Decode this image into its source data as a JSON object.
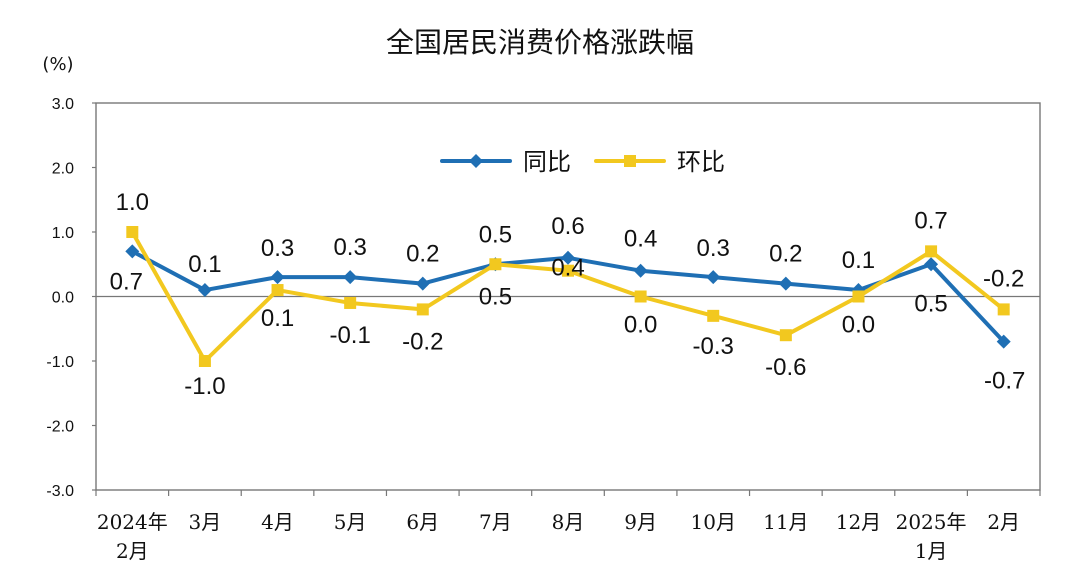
{
  "chart_data": {
    "type": "line",
    "title": "全国居民消费价格涨跌幅",
    "ylabel": "(%)",
    "xlabel": "",
    "ylim": [
      -3.0,
      3.0
    ],
    "yticks": [
      "3.0",
      "2.0",
      "1.0",
      "0.0",
      "-1.0",
      "-2.0",
      "-3.0"
    ],
    "categories": [
      [
        "2024年",
        "2月"
      ],
      [
        "3月"
      ],
      [
        "4月"
      ],
      [
        "5月"
      ],
      [
        "6月"
      ],
      [
        "7月"
      ],
      [
        "8月"
      ],
      [
        "9月"
      ],
      [
        "10月"
      ],
      [
        "11月"
      ],
      [
        "12月"
      ],
      [
        "2025年",
        "1月"
      ],
      [
        "2月"
      ]
    ],
    "series": [
      {
        "name": "同比",
        "color": "#1f6fb4",
        "marker": "diamond",
        "values": [
          0.7,
          0.1,
          0.3,
          0.3,
          0.2,
          0.5,
          0.6,
          0.4,
          0.3,
          0.2,
          0.1,
          0.5,
          -0.7
        ],
        "labels": [
          "0.7",
          "0.1",
          "0.3",
          "0.3",
          "0.2",
          "0.5",
          "0.6",
          "0.4",
          "0.3",
          "0.2",
          "0.1",
          "0.5",
          "-0.7"
        ]
      },
      {
        "name": "环比",
        "color": "#f2c81f",
        "marker": "square",
        "values": [
          1.0,
          -1.0,
          0.1,
          -0.1,
          -0.2,
          0.5,
          0.4,
          0.0,
          -0.3,
          -0.6,
          0.0,
          0.7,
          -0.2
        ],
        "labels": [
          "1.0",
          "-1.0",
          "0.1",
          "-0.1",
          "-0.2",
          "0.5",
          "0.4",
          "0.0",
          "-0.3",
          "-0.6",
          "0.0",
          "0.7",
          "-0.2"
        ]
      }
    ],
    "legend": {
      "position": "top-center"
    },
    "grid": false
  }
}
